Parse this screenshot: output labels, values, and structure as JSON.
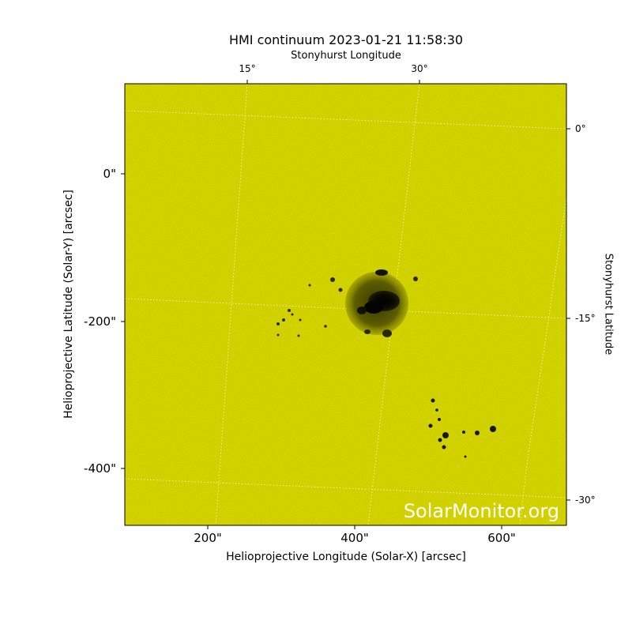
{
  "title": "HMI continuum 2023-01-21 11:58:30",
  "top_axis_label": "Stonyhurst Longitude",
  "xlabel": "Helioprojective Longitude (Solar-X) [arcsec]",
  "ylabel": "Helioprojective Latitude (Solar-Y) [arcsec]",
  "right_axis_label": "Stonyhurst Latitude",
  "watermark": "SolarMonitor.org",
  "x_ticks": [
    "200\"",
    "400\"",
    "600\""
  ],
  "y_ticks": [
    "0\"",
    "-200\"",
    "-400\""
  ],
  "top_ticks": [
    "15°",
    "30°"
  ],
  "right_ticks": [
    "0°",
    "-15°",
    "-30°"
  ],
  "colors": {
    "photosphere": "#cccc00",
    "spot": "#141400",
    "grid": "#ffffff"
  }
}
